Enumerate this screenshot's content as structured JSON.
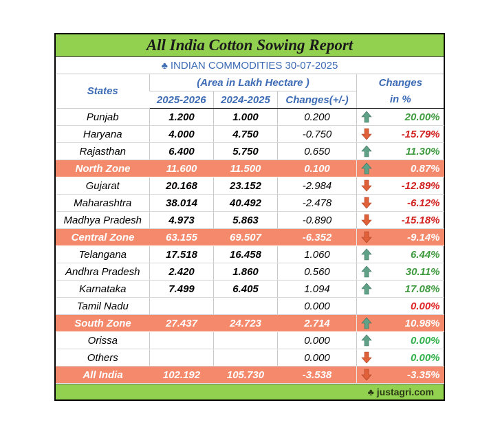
{
  "title": "All India Cotton Sowing Report",
  "subtitle": "INDIAN COMMODITIES 30-07-2025",
  "subtitle_icon": "club-icon",
  "header": {
    "states": "States",
    "area_note": "(Area in Lakh Hectare )",
    "col_2025": "2025-2026",
    "col_2024": "2024-2025",
    "col_change": "Changes(+/-)",
    "pct_line1": "Changes",
    "pct_line2": "in %"
  },
  "rows": [
    {
      "state": "Punjab",
      "y2025": "1.200",
      "y2024": "1.000",
      "change": "0.200",
      "dir": "up",
      "pct": "20.00%",
      "zone": false
    },
    {
      "state": "Haryana",
      "y2025": "4.000",
      "y2024": "4.750",
      "change": "-0.750",
      "dir": "down",
      "pct": "-15.79%",
      "zone": false
    },
    {
      "state": "Rajasthan",
      "y2025": "6.400",
      "y2024": "5.750",
      "change": "0.650",
      "dir": "up",
      "pct": "11.30%",
      "zone": false
    },
    {
      "state": "North Zone",
      "y2025": "11.600",
      "y2024": "11.500",
      "change": "0.100",
      "dir": "up",
      "pct": "0.87%",
      "zone": true
    },
    {
      "state": "Gujarat",
      "y2025": "20.168",
      "y2024": "23.152",
      "change": "-2.984",
      "dir": "down",
      "pct": "-12.89%",
      "zone": false
    },
    {
      "state": "Maharashtra",
      "y2025": "38.014",
      "y2024": "40.492",
      "change": "-2.478",
      "dir": "down",
      "pct": "-6.12%",
      "zone": false
    },
    {
      "state": "Madhya Pradesh",
      "y2025": "4.973",
      "y2024": "5.863",
      "change": "-0.890",
      "dir": "down",
      "pct": "-15.18%",
      "zone": false
    },
    {
      "state": "Central Zone",
      "y2025": "63.155",
      "y2024": "69.507",
      "change": "-6.352",
      "dir": "down",
      "pct": "-9.14%",
      "zone": true
    },
    {
      "state": "Telangana",
      "y2025": "17.518",
      "y2024": "16.458",
      "change": "1.060",
      "dir": "up",
      "pct": "6.44%",
      "zone": false
    },
    {
      "state": "Andhra Pradesh",
      "y2025": "2.420",
      "y2024": "1.860",
      "change": "0.560",
      "dir": "up",
      "pct": "30.11%",
      "zone": false
    },
    {
      "state": "Karnataka",
      "y2025": "7.499",
      "y2024": "6.405",
      "change": "1.094",
      "dir": "up",
      "pct": "17.08%",
      "zone": false
    },
    {
      "state": "Tamil Nadu",
      "y2025": "",
      "y2024": "",
      "change": "0.000",
      "dir": "none",
      "pct": "0.00%",
      "pct_color": "red",
      "zone": false
    },
    {
      "state": "South Zone",
      "y2025": "27.437",
      "y2024": "24.723",
      "change": "2.714",
      "dir": "up",
      "pct": "10.98%",
      "zone": true
    },
    {
      "state": "Orissa",
      "y2025": "",
      "y2024": "",
      "change": "0.000",
      "dir": "up",
      "pct": "0.00%",
      "pct_color": "green",
      "zone": false
    },
    {
      "state": "Others",
      "y2025": "",
      "y2024": "",
      "change": "0.000",
      "dir": "down",
      "pct": "0.00%",
      "pct_color": "green",
      "zone": false
    },
    {
      "state": "All India",
      "y2025": "102.192",
      "y2024": "105.730",
      "change": "-3.538",
      "dir": "down",
      "pct": "-3.35%",
      "zone": true
    }
  ],
  "colors": {
    "title_bg": "#92d050",
    "zone_bg": "#f4896b",
    "header_text": "#3d6cb5",
    "up_arrow": "#5fa287",
    "down_arrow": "#e0603a",
    "positive": "#3e9a3e",
    "negative": "#d21f1f"
  },
  "footer": "justagri.com",
  "footer_icon": "club-icon"
}
